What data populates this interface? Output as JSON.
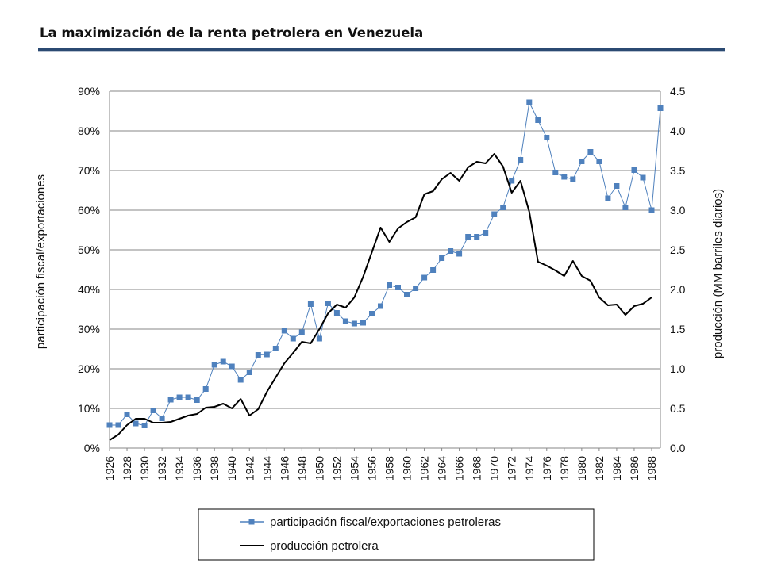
{
  "page": {
    "title": "La maximización de la renta petrolera en Venezuela"
  },
  "chart_data": {
    "type": "line",
    "title": "La maximización de la renta petrolera en Venezuela",
    "xlabel": "",
    "ylabel_left": "participación fiscal/exportaciones",
    "ylabel_right": "producción (MM barriles diarios)",
    "x_ticks": [
      "1926",
      "1928",
      "1930",
      "1932",
      "1934",
      "1936",
      "1938",
      "1940",
      "1942",
      "1944",
      "1946",
      "1948",
      "1950",
      "1952",
      "1954",
      "1956",
      "1958",
      "1960",
      "1962",
      "1964",
      "1966",
      "1968",
      "1970",
      "1972",
      "1974",
      "1976",
      "1978",
      "1980",
      "1982",
      "1984",
      "1986",
      "1988"
    ],
    "y_left_ticks": [
      "0%",
      "10%",
      "20%",
      "30%",
      "40%",
      "50%",
      "60%",
      "70%",
      "80%",
      "90%"
    ],
    "y_right_ticks": [
      "0.0",
      "0.5",
      "1.0",
      "1.5",
      "2.0",
      "2.5",
      "3.0",
      "3.5",
      "4.0",
      "4.5"
    ],
    "ylim_left": [
      0,
      90
    ],
    "ylim_right": [
      0,
      4.5
    ],
    "xlim": [
      1926,
      1989
    ],
    "grid": "horizontal",
    "legend_placement": "bottom",
    "series": [
      {
        "name": "participación fiscal/exportaciones petroleras",
        "axis": "left",
        "color": "#4f81bd",
        "marker": "square",
        "x": [
          1926,
          1927,
          1928,
          1929,
          1930,
          1931,
          1932,
          1933,
          1934,
          1935,
          1936,
          1937,
          1938,
          1939,
          1940,
          1941,
          1942,
          1943,
          1944,
          1945,
          1946,
          1947,
          1948,
          1949,
          1950,
          1951,
          1952,
          1953,
          1954,
          1955,
          1956,
          1957,
          1958,
          1959,
          1960,
          1961,
          1962,
          1963,
          1964,
          1965,
          1966,
          1967,
          1968,
          1969,
          1970,
          1971,
          1972,
          1973,
          1974,
          1975,
          1976,
          1977,
          1978,
          1979,
          1980,
          1981,
          1982,
          1983,
          1984,
          1985,
          1986,
          1987,
          1988,
          1989
        ],
        "values": [
          5.8,
          5.8,
          8.5,
          6.2,
          5.7,
          9.5,
          7.5,
          12.2,
          12.8,
          12.8,
          12.1,
          14.9,
          21.0,
          21.8,
          20.6,
          17.2,
          19.1,
          23.5,
          23.6,
          25.1,
          29.6,
          27.6,
          29.2,
          36.3,
          27.6,
          36.5,
          34.1,
          32.0,
          31.4,
          31.6,
          33.9,
          35.8,
          41.1,
          40.5,
          38.7,
          40.3,
          43.0,
          44.9,
          47.9,
          49.7,
          49.0,
          53.3,
          53.3,
          54.3,
          59.0,
          60.7,
          67.4,
          72.7,
          87.2,
          82.7,
          78.3,
          69.5,
          68.4,
          67.8,
          72.3,
          74.7,
          72.3,
          63.0,
          66.1,
          60.7,
          70.1,
          68.2,
          60.0,
          85.7
        ]
      },
      {
        "name": "producción petrolera",
        "axis": "right",
        "color": "#000000",
        "marker": "none",
        "x": [
          1926,
          1927,
          1928,
          1929,
          1930,
          1931,
          1932,
          1933,
          1934,
          1935,
          1936,
          1937,
          1938,
          1939,
          1940,
          1941,
          1942,
          1943,
          1944,
          1945,
          1946,
          1947,
          1948,
          1949,
          1950,
          1951,
          1952,
          1953,
          1954,
          1955,
          1956,
          1957,
          1958,
          1959,
          1960,
          1961,
          1962,
          1963,
          1964,
          1965,
          1966,
          1967,
          1968,
          1969,
          1970,
          1971,
          1972,
          1973,
          1974,
          1975,
          1976,
          1977,
          1978,
          1979,
          1980,
          1981,
          1982,
          1983,
          1984,
          1985,
          1986,
          1987,
          1988
        ],
        "values": [
          0.1,
          0.17,
          0.29,
          0.37,
          0.37,
          0.32,
          0.32,
          0.33,
          0.37,
          0.41,
          0.43,
          0.51,
          0.52,
          0.56,
          0.5,
          0.62,
          0.41,
          0.49,
          0.71,
          0.89,
          1.07,
          1.2,
          1.34,
          1.32,
          1.5,
          1.7,
          1.81,
          1.77,
          1.9,
          2.16,
          2.47,
          2.78,
          2.6,
          2.77,
          2.85,
          2.91,
          3.2,
          3.24,
          3.39,
          3.47,
          3.37,
          3.54,
          3.61,
          3.59,
          3.71,
          3.55,
          3.22,
          3.37,
          2.98,
          2.35,
          2.3,
          2.24,
          2.17,
          2.36,
          2.17,
          2.11,
          1.9,
          1.8,
          1.81,
          1.68,
          1.79,
          1.82,
          1.9
        ]
      }
    ]
  }
}
